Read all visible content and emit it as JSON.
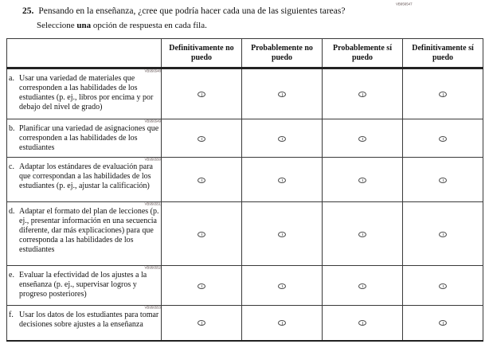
{
  "question": {
    "number": "25.",
    "text": "Pensando en la enseñanza, ¿cree que podría hacer cada una de las siguientes tareas?",
    "instruction_pre": "Seleccione ",
    "instruction_bold": "una",
    "instruction_post": " opción de respuesta en cada fila.",
    "code": "VB956547"
  },
  "table": {
    "columns": [
      "Definitivamente no puedo",
      "Probablemente no puedo",
      "Probablemente sí puedo",
      "Definitivamente sí puedo"
    ],
    "rows": [
      {
        "letter": "a.",
        "code": "VB956548",
        "text": "Usar una variedad de materiales que corresponden a las habilidades de los estudiantes (p. ej., libros por encima y por debajo del nivel de grado)"
      },
      {
        "letter": "b.",
        "code": "VB956549",
        "text": "Planificar una variedad de asignaciones que corresponden a las habilidades de los estudiantes"
      },
      {
        "letter": "c.",
        "code": "VB956550",
        "text": "Adaptar los estándares de evaluación para que correspondan a las habilidades de los estudiantes (p. ej., ajustar la calificación)"
      },
      {
        "letter": "d.",
        "code": "VB956551",
        "text": "Adaptar el formato del plan de lecciones (p. ej., presentar información en una secuencia diferente, dar más explicaciones) para que corresponda a las habilidades de los estudiantes"
      },
      {
        "letter": "e.",
        "code": "VB956552",
        "text": "Evaluar la efectividad de los ajustes a la enseñanza (p. ej., supervisar logros y progreso posteriores)"
      },
      {
        "letter": "f.",
        "code": "VB956553",
        "text": "Usar los datos de los estudiantes para tomar decisiones sobre ajustes a la enseñanza"
      }
    ]
  },
  "colors": {
    "text": "#111111",
    "border": "#3a3a3a",
    "code": "#5a4a4a"
  }
}
